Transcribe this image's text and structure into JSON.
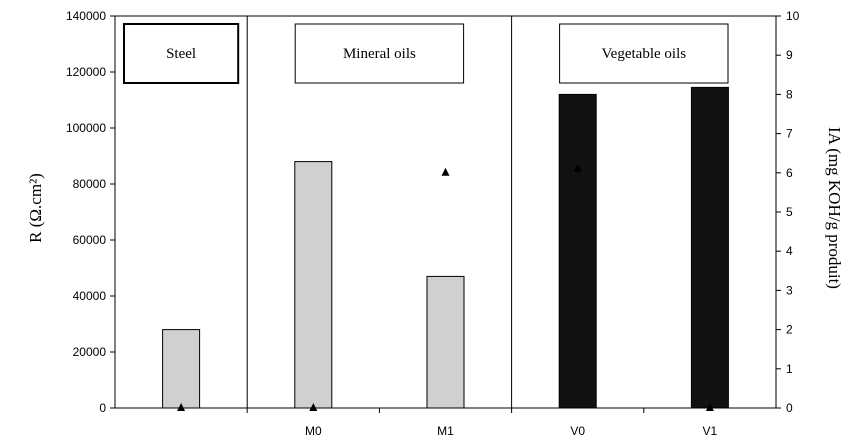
{
  "chart_data": {
    "type": "bar",
    "categories": [
      "",
      "M0",
      "M1",
      "V0",
      "V1"
    ],
    "series": [
      {
        "axis": "left",
        "mark": "bar",
        "values": [
          28000,
          88000,
          47000,
          112000,
          114500
        ],
        "colors": [
          "#d0d0d0",
          "#d0d0d0",
          "#d0d0d0",
          "#111111",
          "#111111"
        ]
      },
      {
        "axis": "right",
        "mark": "triangle",
        "values": [
          0,
          0,
          6,
          6.1,
          0
        ],
        "color": "#000000"
      }
    ],
    "ylabel": "R (Ω.cm²)",
    "y2label": "IA (mg KOH/g produit)",
    "ylim": [
      0,
      140000
    ],
    "y2lim": [
      0,
      10
    ],
    "yticks": [
      0,
      20000,
      40000,
      60000,
      80000,
      100000,
      120000,
      140000
    ],
    "y2ticks": [
      0,
      1,
      2,
      3,
      4,
      5,
      6,
      7,
      8,
      9,
      10
    ],
    "groups": [
      {
        "label": "Steel",
        "from": 0,
        "to": 0,
        "box_style": "bold"
      },
      {
        "label": "Mineral oils",
        "from": 1,
        "to": 2,
        "box_style": "normal"
      },
      {
        "label": "Vegetable oils",
        "from": 3,
        "to": 4,
        "box_style": "normal"
      }
    ],
    "grid": false,
    "legend": "none"
  }
}
